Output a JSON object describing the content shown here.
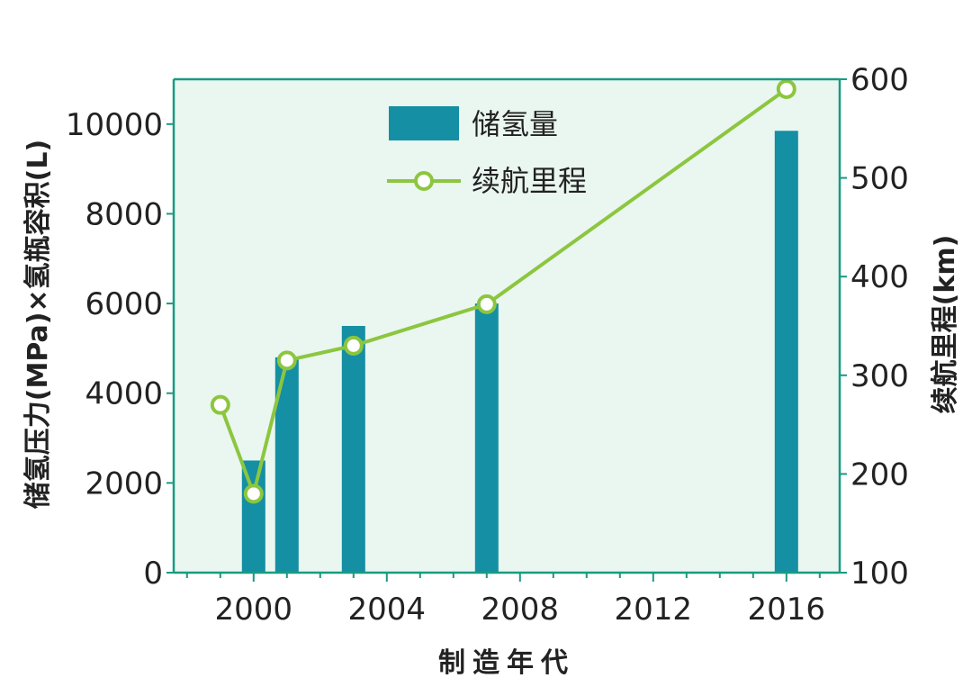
{
  "colors": {
    "plot_bg": "#eaf6f0",
    "axis": "#1a9a82",
    "bar": "#148fa3",
    "line": "#8cc63f"
  },
  "chart_data": {
    "type": "bar+line",
    "xlabel": "制造年代",
    "ylabel_left": "储氢压力(MPa)×氢瓶容积(L)",
    "ylabel_right": "续航里程(km)",
    "x_ticks": [
      2000,
      2004,
      2008,
      2012,
      2016
    ],
    "x_range": [
      1997.6,
      2017.6
    ],
    "ylim_left": [
      0,
      11000
    ],
    "ylim_right": [
      100,
      600
    ],
    "y_ticks_left": [
      0,
      2000,
      4000,
      6000,
      8000,
      10000
    ],
    "y_ticks_right": [
      100,
      200,
      300,
      400,
      500,
      600
    ],
    "legend_position": "top-center",
    "series": [
      {
        "name": "储氢量",
        "type": "bar",
        "axis": "left",
        "x": [
          2000,
          2001,
          2003,
          2007,
          2016
        ],
        "values": [
          2500,
          4800,
          5500,
          6000,
          9850
        ]
      },
      {
        "name": "续航里程",
        "type": "line",
        "axis": "right",
        "x": [
          1999,
          2000,
          2001,
          2003,
          2007,
          2016
        ],
        "values": [
          270,
          180,
          315,
          330,
          372,
          590
        ]
      }
    ]
  }
}
